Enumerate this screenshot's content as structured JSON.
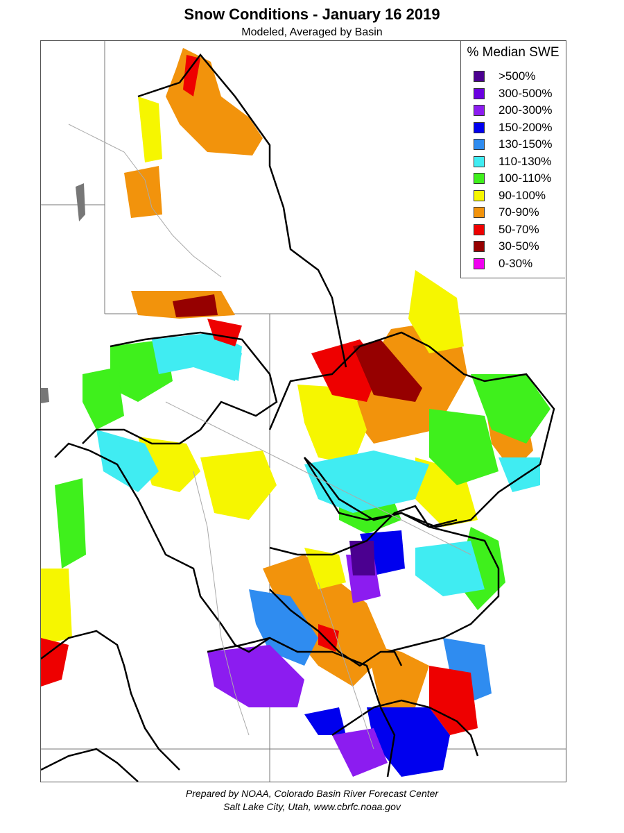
{
  "title": "Snow Conditions - January 16 2019",
  "subtitle": "Modeled, Averaged by Basin",
  "legend": {
    "title": "% Median SWE",
    "items": [
      {
        "label": ">500%",
        "color": "#4b0090"
      },
      {
        "label": "300-500%",
        "color": "#6a00e0"
      },
      {
        "label": "200-300%",
        "color": "#8c1cf0"
      },
      {
        "label": "150-200%",
        "color": "#0000ee"
      },
      {
        "label": "130-150%",
        "color": "#2f8cf0"
      },
      {
        "label": "110-130%",
        "color": "#40ecf2"
      },
      {
        "label": "100-110%",
        "color": "#3ff01c"
      },
      {
        "label": "90-100%",
        "color": "#f6f600"
      },
      {
        "label": "70-90%",
        "color": "#f2930c"
      },
      {
        "label": "50-70%",
        "color": "#ee0000"
      },
      {
        "label": "30-50%",
        "color": "#960000"
      },
      {
        "label": "0-30%",
        "color": "#f000f0"
      }
    ]
  },
  "credit": {
    "line1": "Prepared by NOAA, Colorado Basin River Forecast Center",
    "line2": "Salt Lake City, Utah, www.cbrfc.noaa.gov"
  }
}
